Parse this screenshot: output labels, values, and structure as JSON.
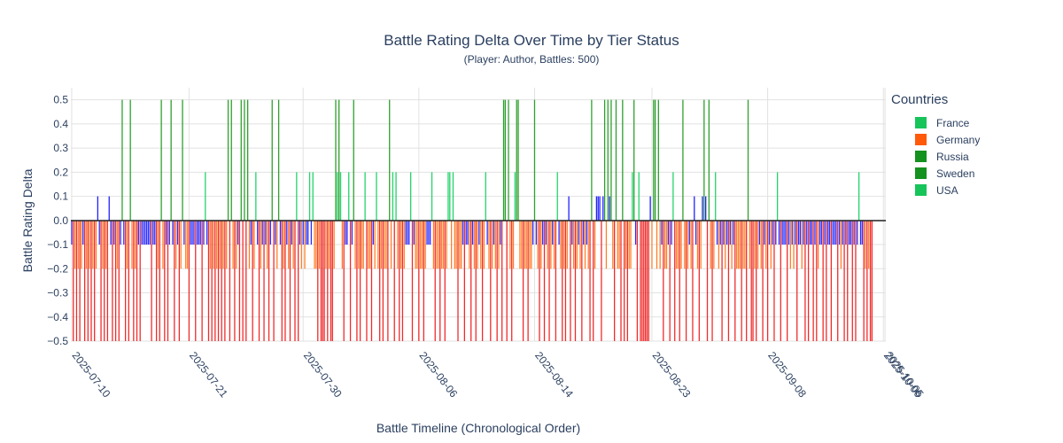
{
  "chart_data": {
    "type": "bar",
    "title": "Battle Rating Delta Over Time by Tier Status",
    "subtitle": "(Player: Author, Battles: 500)",
    "xlabel": "Battle Timeline (Chronological Order)",
    "ylabel": "Battle Rating Delta",
    "ylim": [
      -0.5,
      0.55
    ],
    "yticks": [
      -0.5,
      -0.4,
      -0.3,
      -0.2,
      -0.1,
      0,
      0.1,
      0.2,
      0.3,
      0.4,
      0.5
    ],
    "ytick_labels": [
      "−0.5",
      "−0.4",
      "−0.3",
      "−0.2",
      "−0.1",
      "0.0",
      "0.1",
      "0.2",
      "0.3",
      "0.4",
      "0.5"
    ],
    "x_count": 500,
    "x_ticks": [
      {
        "index": 0,
        "label": "2025-07-10"
      },
      {
        "index": 72,
        "label": "2025-07-21"
      },
      {
        "index": 142,
        "label": "2025-07-30"
      },
      {
        "index": 213,
        "label": "2025-08-06"
      },
      {
        "index": 284,
        "label": "2025-08-14"
      },
      {
        "index": 356,
        "label": "2025-08-23"
      },
      {
        "index": 427,
        "label": "2025-09-08"
      },
      {
        "index": 498,
        "label": "2025-10-06"
      },
      {
        "index": 499,
        "label": "2025-10-05"
      }
    ],
    "grid": true,
    "legend_title": "Countries",
    "legend_position": "right",
    "legend": [
      {
        "name": "France",
        "color": "#16c45a"
      },
      {
        "name": "Germany",
        "color": "#ff5a0a"
      },
      {
        "name": "Russia",
        "color": "#14911e"
      },
      {
        "name": "Sweden",
        "color": "#14911e"
      },
      {
        "name": "USA",
        "color": "#16c45a"
      }
    ],
    "bar_colors": {
      "+0.5": "#2ca02c",
      "+0.2": "#22d36a",
      "+0.1": "#1f1fff",
      "-0.1": "#2b2bff",
      "-0.2": "#ff7f2a",
      "-0.5": "#ef2b2b"
    },
    "values": [
      -0.1,
      -0.5,
      -0.2,
      -0.5,
      -0.2,
      -0.5,
      -0.2,
      -0.1,
      -0.5,
      -0.2,
      -0.5,
      -0.2,
      -0.5,
      -0.2,
      -0.5,
      -0.2,
      0.1,
      -0.1,
      -0.5,
      -0.2,
      -0.5,
      -0.2,
      -0.5,
      0.1,
      -0.1,
      -0.5,
      -0.1,
      -0.5,
      -0.2,
      -0.5,
      -0.1,
      0.5,
      -0.1,
      -0.5,
      -0.2,
      -0.5,
      0.5,
      -0.2,
      -0.5,
      -0.2,
      -0.5,
      -0.1,
      -0.5,
      -0.1,
      -0.1,
      -0.1,
      -0.1,
      -0.1,
      -0.1,
      -0.5,
      -0.1,
      -0.1,
      -0.5,
      -0.2,
      -0.5,
      0.5,
      -0.2,
      -0.5,
      -0.1,
      -0.5,
      -0.1,
      0.5,
      -0.1,
      -0.5,
      -0.2,
      -0.1,
      -0.5,
      -0.2,
      0.5,
      -0.1,
      -0.2,
      -0.2,
      -0.5,
      -0.1,
      -0.1,
      -0.1,
      -0.5,
      -0.1,
      -0.1,
      -0.1,
      -0.5,
      -0.1,
      0.2,
      -0.1,
      -0.5,
      -0.2,
      -0.5,
      -0.2,
      -0.5,
      -0.2,
      -0.5,
      -0.2,
      -0.5,
      -0.2,
      -0.5,
      -0.2,
      0.5,
      -0.5,
      0.5,
      -0.2,
      -0.5,
      -0.2,
      -0.1,
      -0.5,
      0.5,
      -0.5,
      0.5,
      -0.5,
      0.5,
      -0.2,
      -0.1,
      -0.5,
      -0.2,
      0.2,
      -0.1,
      -0.5,
      -0.2,
      -0.1,
      -0.5,
      -0.1,
      -0.2,
      -0.5,
      -0.1,
      0.5,
      -0.5,
      -0.1,
      -0.2,
      0.5,
      -0.1,
      -0.5,
      -0.2,
      -0.5,
      -0.1,
      -0.2,
      -0.5,
      -0.1,
      -0.2,
      -0.5,
      0.2,
      -0.5,
      -0.1,
      -0.2,
      -0.1,
      -0.2,
      -0.1,
      -0.1,
      0.2,
      -0.1,
      0.2,
      -0.2,
      -0.2,
      -0.5,
      -0.2,
      -0.5,
      -0.5,
      -0.5,
      -0.2,
      -0.5,
      -0.2,
      -0.5,
      -0.5,
      -0.2,
      0.5,
      0.2,
      0.5,
      0.2,
      -0.2,
      -0.5,
      -0.1,
      -0.1,
      0.2,
      -0.5,
      -0.1,
      0.5,
      -0.2,
      -0.5,
      -0.2,
      -0.5,
      -0.2,
      -0.2,
      0.2,
      -0.5,
      -0.2,
      -0.2,
      -0.5,
      -0.1,
      -0.2,
      0.2,
      -0.2,
      -0.5,
      -0.2,
      -0.5,
      -0.2,
      -0.2,
      -0.5,
      0.5,
      -0.2,
      0.2,
      -0.5,
      0.2,
      -0.2,
      -0.5,
      -0.2,
      -0.5,
      -0.2,
      -0.1,
      -0.1,
      -0.1,
      0.2,
      -0.5,
      -0.1,
      -0.2,
      -0.2,
      -0.5,
      -0.2,
      -0.2,
      -0.5,
      -0.2,
      -0.1,
      -0.1,
      -0.1,
      0.2,
      -0.2,
      -0.5,
      -0.2,
      -0.2,
      -0.5,
      -0.2,
      -0.2,
      -0.5,
      -0.2,
      0.2,
      0.2,
      -0.2,
      0.2,
      -0.2,
      -0.2,
      -0.5,
      -0.2,
      -0.2,
      -0.1,
      -0.5,
      -0.1,
      -0.1,
      -0.2,
      -0.5,
      -0.1,
      -0.2,
      -0.5,
      -0.2,
      -0.1,
      -0.2,
      -0.5,
      -0.2,
      0.2,
      -0.1,
      -0.2,
      -0.5,
      -0.2,
      -0.1,
      -0.2,
      -0.5,
      -0.2,
      -0.1,
      -0.5,
      0.5,
      0.5,
      -0.5,
      0.5,
      -0.2,
      -0.5,
      -0.2,
      0.2,
      0.5,
      0.5,
      -0.2,
      -0.2,
      -0.5,
      -0.2,
      -0.2,
      -0.5,
      -0.2,
      -0.2,
      -0.1,
      0.5,
      -0.1,
      -0.2,
      -0.5,
      -0.2,
      -0.1,
      -0.5,
      -0.1,
      -0.2,
      -0.5,
      -0.2,
      -0.1,
      -0.2,
      -0.5,
      0.2,
      -0.1,
      -0.2,
      -0.5,
      -0.2,
      -0.5,
      -0.2,
      0.1,
      -0.5,
      -0.1,
      -0.2,
      -0.5,
      -0.2,
      -0.1,
      -0.2,
      -0.5,
      -0.1,
      -0.2,
      -0.1,
      -0.2,
      -0.5,
      0.5,
      -0.5,
      -0.2,
      0.1,
      0.1,
      0.1,
      -0.5,
      0.1,
      0.5,
      -0.2,
      0.5,
      0.1,
      0.5,
      -0.2,
      -0.5,
      0.5,
      -0.2,
      -0.2,
      -0.5,
      0.5,
      -0.5,
      -0.2,
      -0.5,
      -0.2,
      -0.2,
      0.2,
      0.5,
      -0.1,
      -0.5,
      0.2,
      -0.5,
      -0.5,
      -0.5,
      -0.5,
      -0.5,
      -0.5,
      0.1,
      -0.2,
      0.5,
      0.5,
      -0.2,
      0.5,
      -0.2,
      -0.1,
      -0.5,
      -0.2,
      -0.2,
      -0.1,
      -0.5,
      -0.1,
      0.2,
      -0.5,
      -0.2,
      -0.2,
      -0.5,
      -0.2,
      0.5,
      -0.2,
      -0.5,
      -0.2,
      -0.1,
      -0.2,
      -0.5,
      0.1,
      -0.1,
      -0.2,
      -0.5,
      -0.2,
      0.1,
      0.5,
      0.1,
      -0.5,
      0.5,
      -0.2,
      -0.5,
      -0.2,
      0.2,
      -0.1,
      -0.2,
      -0.1,
      -0.5,
      -0.1,
      -0.2,
      -0.1,
      -0.5,
      -0.1,
      -0.2,
      -0.1,
      -0.5,
      -0.2,
      -0.2,
      -0.2,
      -0.5,
      -0.2,
      -0.2,
      -0.5,
      0.5,
      -0.2,
      -0.5,
      -0.5,
      -0.2,
      -0.5,
      -0.2,
      -0.1,
      -0.2,
      -0.5,
      -0.1,
      -0.2,
      -0.5,
      -0.1,
      -0.2,
      -0.1,
      -0.5,
      -0.1,
      0.2,
      -0.1,
      -0.5,
      -0.1,
      -0.1,
      -0.1,
      -0.5,
      -0.1,
      -0.2,
      -0.1,
      -0.2,
      -0.1,
      -0.5,
      -0.1,
      -0.1,
      -0.2,
      -0.1,
      -0.5,
      -0.1,
      -0.5,
      -0.1,
      -0.1,
      -0.5,
      -0.1,
      -0.5,
      -0.2,
      -0.1,
      -0.1,
      -0.5,
      -0.1,
      -0.5,
      -0.1,
      -0.1,
      -0.5,
      -0.1,
      -0.1,
      -0.1,
      -0.5,
      -0.1,
      -0.2,
      -0.1,
      -0.5,
      -0.1,
      -0.5,
      -0.1,
      -0.1,
      -0.5,
      -0.1,
      -0.5,
      -0.1,
      0.2,
      -0.1,
      -0.1,
      -0.5,
      -0.2,
      -0.5,
      -0.2,
      -0.5,
      -0.5
    ]
  }
}
